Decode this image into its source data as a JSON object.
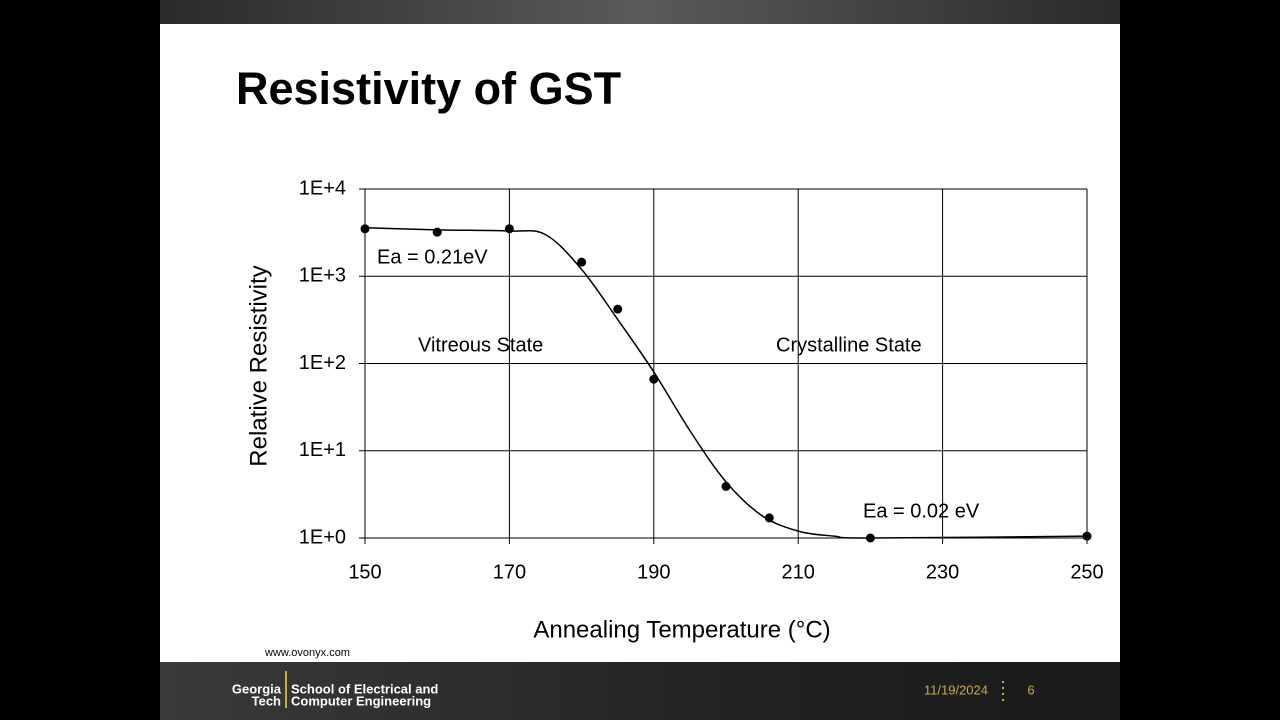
{
  "chart_data": {
    "type": "scatter",
    "title": "Resistivity of GST",
    "x_label": "Annealing Temperature (°C)",
    "y_label": "Relative Resistivity",
    "xlim": [
      150,
      250
    ],
    "xticks": [
      150,
      170,
      190,
      210,
      230,
      250
    ],
    "ylim": [
      1,
      10000
    ],
    "log_y": true,
    "yticks": [
      {
        "value": 1,
        "label": "1E+0"
      },
      {
        "value": 10,
        "label": "1E+1"
      },
      {
        "value": 100,
        "label": "1E+2"
      },
      {
        "value": 1000,
        "label": "1E+3"
      },
      {
        "value": 10000,
        "label": "1E+4"
      }
    ],
    "grid": true,
    "series": [
      {
        "kind": "points",
        "color": "#000000",
        "x": [
          150,
          160,
          170,
          180,
          185,
          190,
          200,
          206,
          220,
          250
        ],
        "values": [
          3500,
          3200,
          3500,
          1450,
          420,
          66,
          3.9,
          1.7,
          1.0,
          1.05
        ]
      },
      {
        "kind": "curve",
        "color": "#000000",
        "x": [
          150,
          160,
          170,
          175,
          180,
          185,
          190,
          195,
          200,
          205,
          210,
          215,
          220,
          250
        ],
        "values": [
          3600,
          3400,
          3300,
          3000,
          1200,
          320,
          80,
          17,
          4.4,
          1.8,
          1.2,
          1.05,
          1.0,
          1.05
        ]
      }
    ],
    "annotations": [
      "Ea = 0.21eV",
      "Vitreous State",
      "Crystalline State",
      "Ea = 0.02 eV"
    ]
  },
  "slide": {
    "source": "www.ovonyx.com",
    "logo": [
      "Georgia",
      "Tech"
    ],
    "school": [
      "School of Electrical and",
      "Computer Engineering"
    ],
    "date": "11/19/2024",
    "page": "6"
  }
}
